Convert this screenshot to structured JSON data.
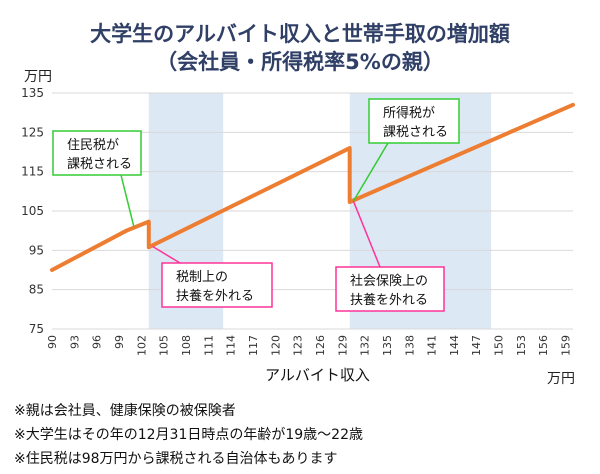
{
  "chart_data": {
    "type": "line",
    "title": "大学生のアルバイト収入と世帯手取の増加額",
    "subtitle": "（会社員・所得税率5%の親）",
    "xlabel": "アルバイト収入",
    "xunit": "万円",
    "yunit": "万円",
    "xlim": [
      90,
      160
    ],
    "ylim": [
      75,
      135
    ],
    "yticks": [
      "75",
      "85",
      "95",
      "105",
      "115",
      "125",
      "135"
    ],
    "xticks": [
      "90",
      "93",
      "96",
      "99",
      "102",
      "105",
      "108",
      "111",
      "114",
      "117",
      "120",
      "123",
      "126",
      "129",
      "132",
      "135",
      "138",
      "141",
      "144",
      "147",
      "150",
      "153",
      "156",
      "159"
    ],
    "shaded_ranges": [
      [
        103,
        113
      ],
      [
        130,
        149
      ]
    ],
    "series": [
      {
        "color": "#ed7d31",
        "points": [
          [
            90,
            90
          ],
          [
            100,
            100
          ],
          [
            103,
            102.3
          ],
          [
            103,
            95.8
          ],
          [
            130,
            121
          ],
          [
            130,
            107.3
          ],
          [
            160,
            132
          ]
        ]
      }
    ],
    "annotations": [
      {
        "id": "a0",
        "lines": [
          "住民税が",
          "課税される"
        ],
        "border_color": "#33cc33",
        "target": [
          101,
          101
        ]
      },
      {
        "id": "a1",
        "lines": [
          "税制上の",
          "扶養を外れる"
        ],
        "border_color": "#ff3399",
        "target": [
          103.5,
          96
        ]
      },
      {
        "id": "a2",
        "lines": [
          "所得税が",
          "課税される"
        ],
        "border_color": "#33cc33",
        "target": [
          130.5,
          107.5
        ]
      },
      {
        "id": "a3",
        "lines": [
          "社会保険上の",
          "扶養を外れる"
        ],
        "border_color": "#ff3399",
        "target": [
          130.5,
          107.5
        ]
      }
    ]
  },
  "notes": [
    "※親は会社員、健康保険の被保険者",
    "※大学生はその年の12月31日時点の年齢が19歳〜22歳",
    "※住民税は98万円から課税される自治体もあります"
  ]
}
